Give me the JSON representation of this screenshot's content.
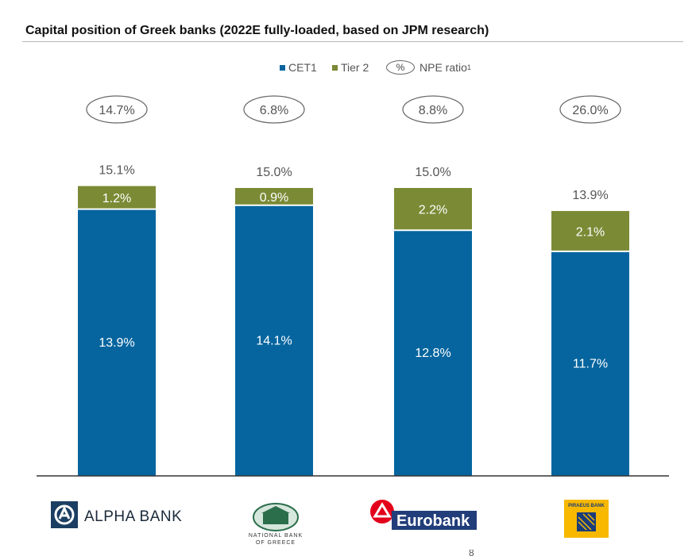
{
  "chart_data": {
    "type": "bar",
    "stacked": true,
    "title": "Capital position of Greek banks (2022E fully-loaded, based on JPM research)",
    "categories": [
      "Alpha Bank",
      "National Bank of Greece",
      "Eurobank",
      "Piraeus Bank"
    ],
    "series": [
      {
        "name": "CET1",
        "color": "#06659f",
        "values": [
          13.9,
          14.1,
          12.8,
          11.7
        ],
        "labels": [
          "13.9%",
          "14.1%",
          "12.8%",
          "11.7%"
        ]
      },
      {
        "name": "Tier 2",
        "color": "#7b8a35",
        "values": [
          1.2,
          0.9,
          2.2,
          2.1
        ],
        "labels": [
          "1.2%",
          "0.9%",
          "2.2%",
          "2.1%"
        ]
      }
    ],
    "totals": [
      "15.1%",
      "15.0%",
      "15.0%",
      "13.9%"
    ],
    "npe_ratio": [
      "14.7%",
      "6.8%",
      "8.8%",
      "26.0%"
    ],
    "legend": {
      "cet1": "CET1",
      "tier2": "Tier 2",
      "npe_symbol": "%",
      "npe_label": "NPE ratio",
      "npe_footnote": "1"
    },
    "ylim": [
      0,
      16
    ]
  },
  "logos": {
    "alpha": "ALPHA BANK",
    "nbg_line1": "NATIONAL BANK",
    "nbg_line2": "OF GREECE",
    "eurobank": "Eurobank",
    "piraeus": "PIRAEUS BANK"
  },
  "page_number": "8"
}
